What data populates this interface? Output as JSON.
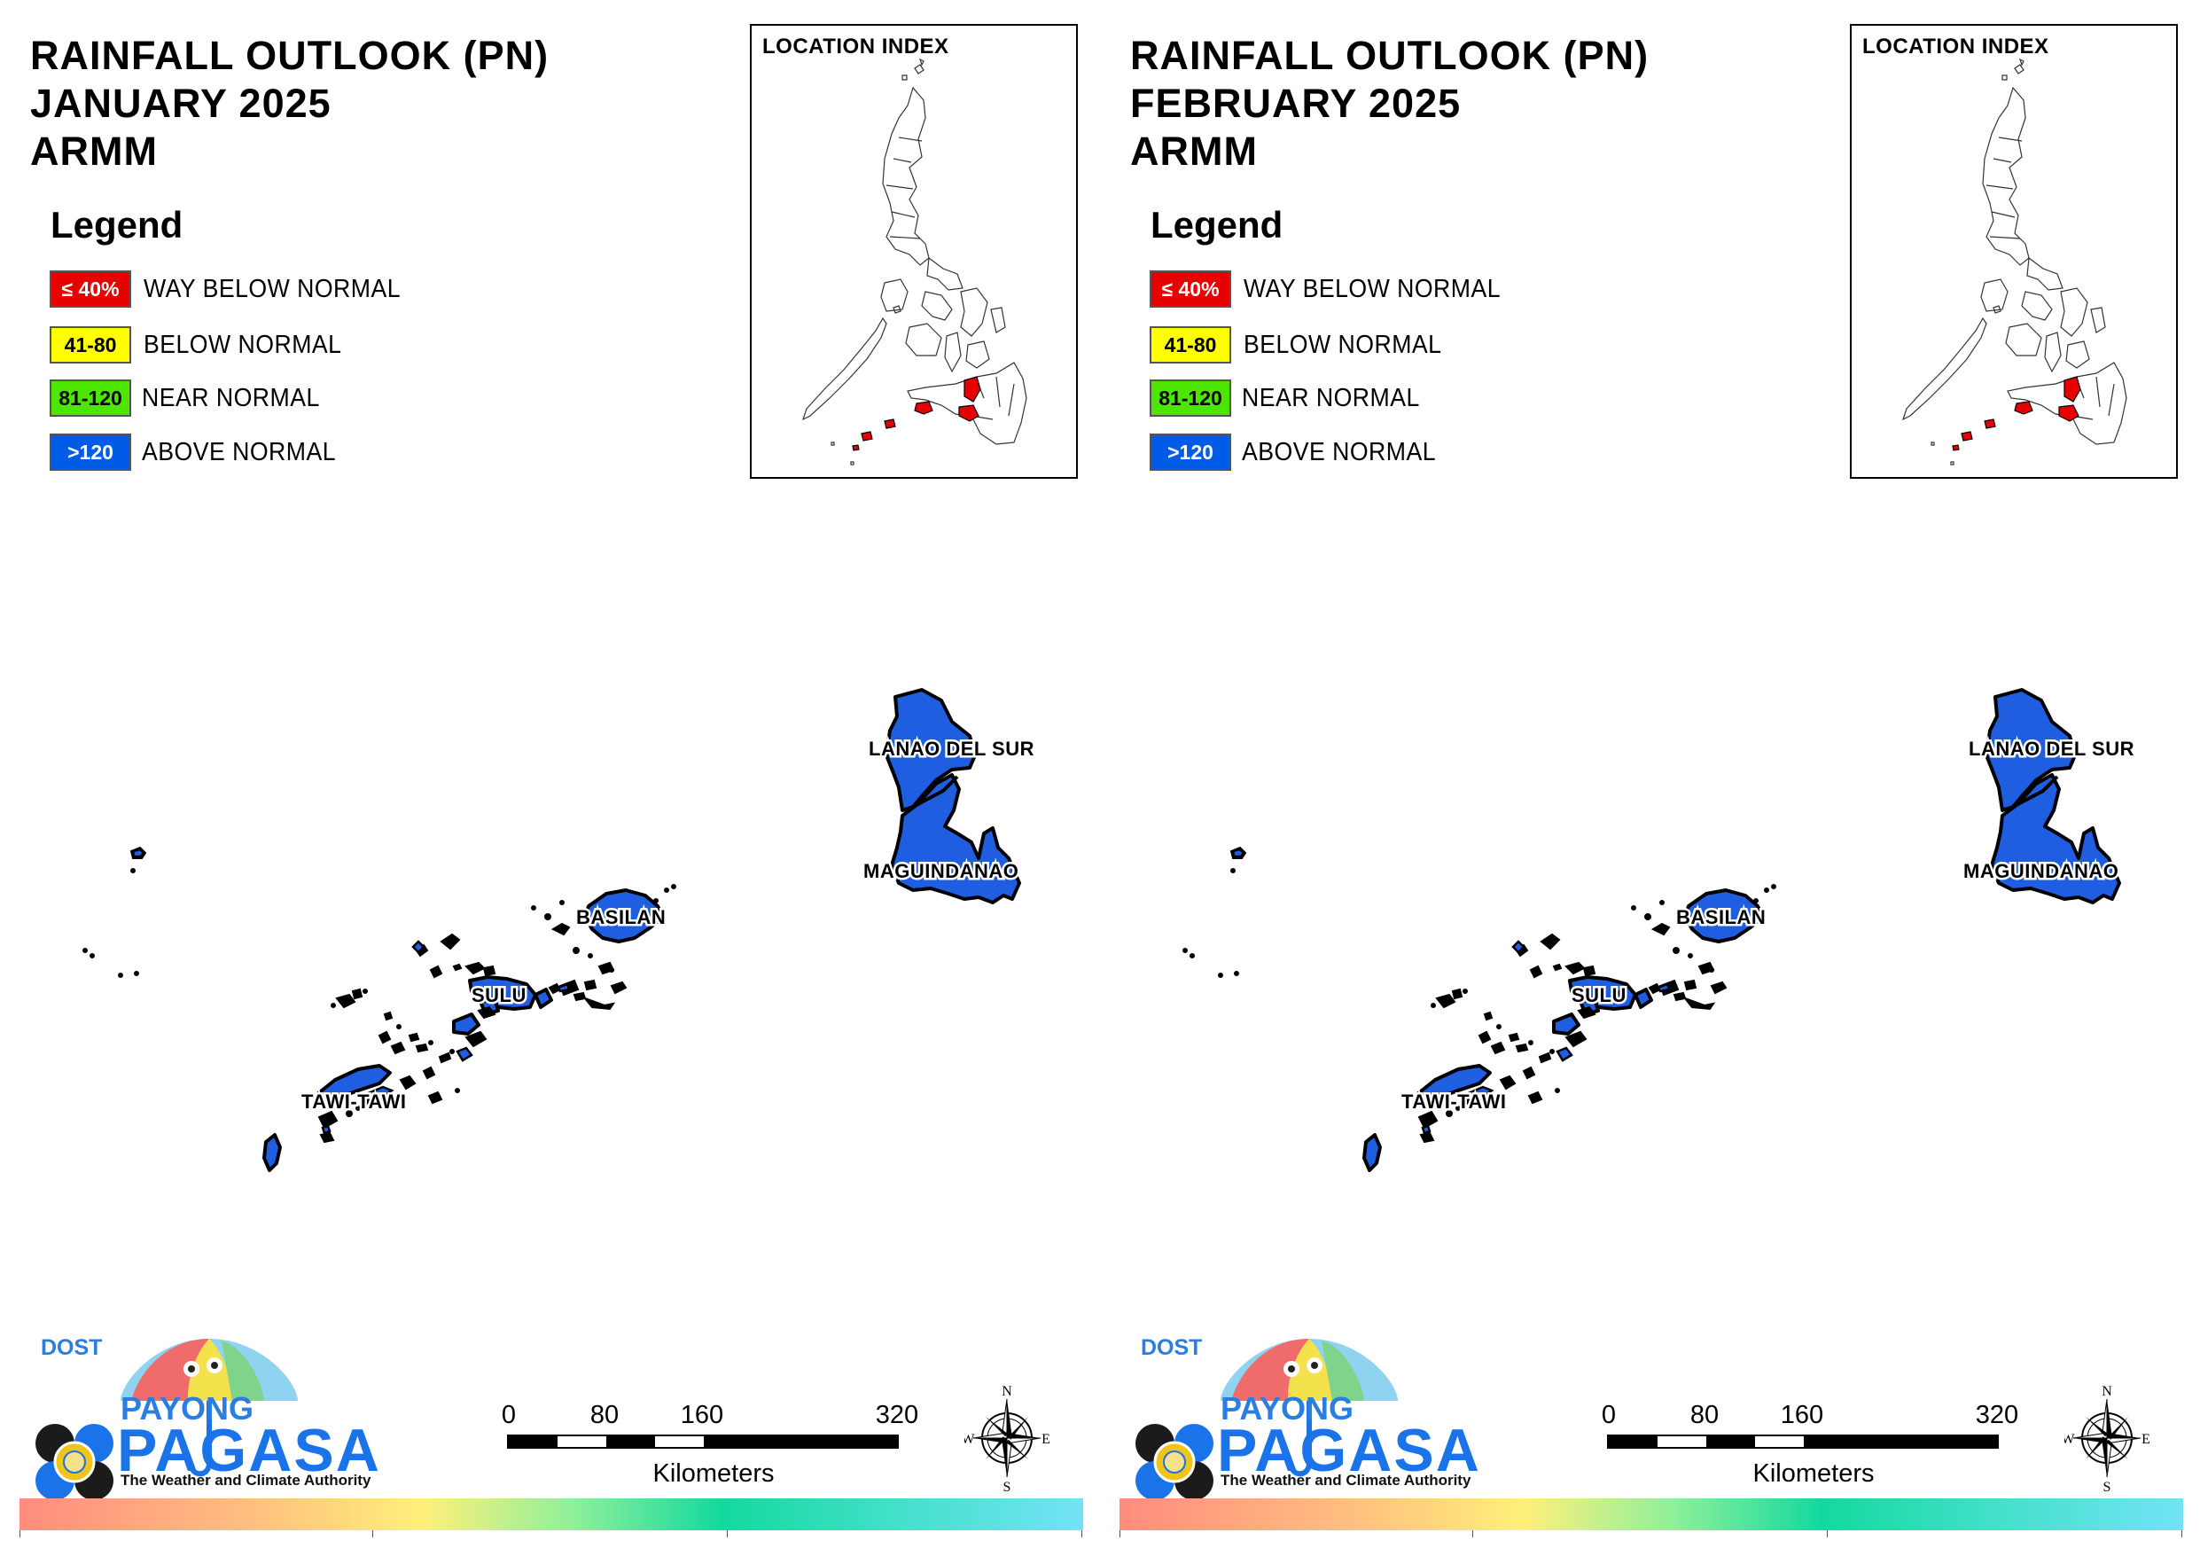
{
  "panels": [
    {
      "title_line1": "RAINFALL OUTLOOK (PN)",
      "title_line2": "JANUARY 2025",
      "title_line3": "ARMM"
    },
    {
      "title_line1": "RAINFALL OUTLOOK (PN)",
      "title_line2": "FEBRUARY 2025",
      "title_line3": "ARMM"
    }
  ],
  "legend": {
    "title": "Legend",
    "items": [
      {
        "code": "≤ 40%",
        "label": "WAY BELOW NORMAL",
        "color": "#e60000",
        "text_color": "#ffffff"
      },
      {
        "code": "41-80",
        "label": "BELOW NORMAL",
        "color": "#ffff00",
        "text_color": "#000000"
      },
      {
        "code": "81-120",
        "label": "NEAR NORMAL",
        "color": "#4ce600",
        "text_color": "#000000"
      },
      {
        "code": ">120",
        "label": "ABOVE NORMAL",
        "color": "#005ce6",
        "text_color": "#ffffff"
      }
    ]
  },
  "inset": {
    "title": "LOCATION INDEX",
    "highlight_color": "#e60000"
  },
  "provinces": [
    {
      "name": "LANAO DEL SUR",
      "category": "ABOVE NORMAL"
    },
    {
      "name": "MAGUINDANAO",
      "category": "ABOVE NORMAL"
    },
    {
      "name": "BASILAN",
      "category": "ABOVE NORMAL"
    },
    {
      "name": "SULU",
      "category": "ABOVE NORMAL"
    },
    {
      "name": "TAWI-TAWI",
      "category": "ABOVE NORMAL"
    }
  ],
  "map_fill_color": "#1f5ee0",
  "scalebar": {
    "ticks": [
      "0",
      "80",
      "160",
      "320"
    ],
    "unit": "Kilometers"
  },
  "compass": {
    "n": "N",
    "s": "S",
    "e": "E",
    "w": "W"
  },
  "logo": {
    "dost": "DOST",
    "payong": "PAYONG",
    "pagasa": "PAGASA",
    "tagline": "The Weather and Climate Authority"
  }
}
